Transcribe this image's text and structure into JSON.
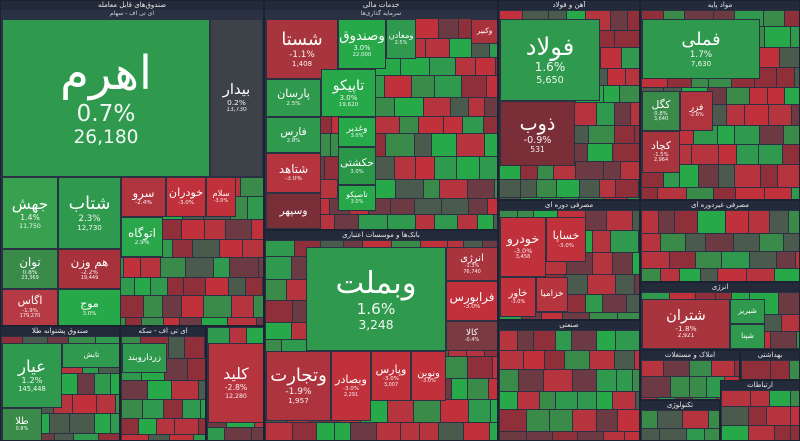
{
  "sectors": [
    {
      "title": "صندوق‌های قابل معامله",
      "subtitle": "ای تی اف - سهام",
      "tiles": [
        {
          "name": "اهرم",
          "change": "0.7%",
          "price": "26,180",
          "color": "#2f9a4e"
        },
        {
          "name": "بیدار",
          "change": "0.2%",
          "price": "13,730",
          "color": "#3d4148"
        },
        {
          "name": "جهش",
          "change": "1.4%",
          "price": "11,750",
          "color": "#38a14f"
        },
        {
          "name": "شتاب",
          "change": "2.3%",
          "price": "12,730",
          "color": "#2f9a4e"
        },
        {
          "name": "توان",
          "change": "0.8%",
          "price": "23,369",
          "color": "#3a8a4a"
        },
        {
          "name": "اگاس",
          "change": "-1.9%",
          "price": "179,270",
          "color": "#b53a44"
        },
        {
          "name": "هم وزن",
          "change": "-2.2%",
          "price": "19,449",
          "color": "#a8323c"
        },
        {
          "name": "موج",
          "change": "3.0%",
          "color": "#27a849"
        },
        {
          "name": "سرو",
          "change": "-2.4%",
          "color": "#b0343e"
        },
        {
          "name": "خودران",
          "change": "-3.0%",
          "color": "#c0313b"
        },
        {
          "name": "سلام",
          "change": "-3.0%",
          "color": "#c0313b"
        },
        {
          "name": "اتوگاه",
          "change": "2.9%",
          "color": "#2aa64b"
        }
      ]
    },
    {
      "title": "صندوق پشتوانه طلا",
      "tiles": [
        {
          "name": "عیار",
          "change": "1.2%",
          "price": "145,448",
          "color": "#2f9a4e"
        },
        {
          "name": "طلا",
          "change": "0.8%",
          "color": "#3a8a4a"
        },
        {
          "name": "تابش",
          "color": "#2f9a4e"
        }
      ]
    },
    {
      "title": "ای تی اف - سکه",
      "tiles": [
        {
          "name": "زرداروبند",
          "color": "#2f9a4e"
        }
      ]
    },
    {
      "tiles": [
        {
          "name": "کلید",
          "change": "-2.8%",
          "price": "12,280",
          "color": "#b5343e"
        }
      ]
    },
    {
      "title": "خدمات مالی",
      "subtitle": "سرمایه گذاری‌ها",
      "tiles": [
        {
          "name": "شستا",
          "change": "-1.1%",
          "price": "1,408",
          "color": "#a8343e"
        },
        {
          "name": "وصندوق",
          "change": "3.0%",
          "price": "22,000",
          "color": "#27a849"
        },
        {
          "name": "ومعادن",
          "change": "2.5%",
          "color": "#2f9a4e"
        },
        {
          "name": "وکبیر",
          "color": "#a8323c"
        },
        {
          "name": "پارسان",
          "change": "2.5%",
          "color": "#2f9a4e"
        },
        {
          "name": "تاپیکو",
          "change": "3.0%",
          "price": "19,620",
          "color": "#27a849"
        },
        {
          "name": "فارس",
          "change": "2.8%",
          "color": "#2f9a4e"
        },
        {
          "name": "وغدیر",
          "change": "3.0%",
          "color": "#27a849"
        },
        {
          "name": "شتاهد",
          "change": "-3.0%",
          "color": "#b5343e"
        },
        {
          "name": "حکشتی",
          "change": "3.0%",
          "color": "#2a9648"
        },
        {
          "name": "وسپهر",
          "color": "#7a2f38"
        },
        {
          "name": "تاصیکو",
          "change": "3.0%",
          "color": "#27a849"
        }
      ]
    },
    {
      "title": "بانک‌ها و موسسات اعتباری",
      "tiles": [
        {
          "name": "وبملت",
          "change": "1.6%",
          "price": "3,248",
          "color": "#2f9a4e"
        },
        {
          "name": "انرژی",
          "change": "-1.3%",
          "price": "76,740",
          "color": "#a8343e"
        },
        {
          "name": "فرابورس",
          "change": "-3.0%",
          "color": "#c0313b"
        },
        {
          "name": "کالا",
          "change": "-0.4%",
          "color": "#7a3a42"
        },
        {
          "name": "وتجارت",
          "change": "-1.9%",
          "price": "1,957",
          "color": "#ad343e"
        },
        {
          "name": "وبصادر",
          "change": "-3.0%",
          "price": "2,291",
          "color": "#c0313b"
        },
        {
          "name": "وپارس",
          "change": "-3.0%",
          "price": "3,007",
          "color": "#c0313b"
        },
        {
          "name": "ونوین",
          "change": "-3.0%",
          "color": "#c0313b"
        }
      ]
    },
    {
      "title": "آهن و فولاد",
      "tiles": [
        {
          "name": "فولاد",
          "change": "1.6%",
          "price": "5,650",
          "color": "#2f9a4e"
        },
        {
          "name": "ذوب",
          "change": "-0.9%",
          "price": "531",
          "color": "#7a2f38"
        }
      ]
    },
    {
      "title": "مواد پایه",
      "tiles": [
        {
          "name": "فملی",
          "change": "1.7%",
          "price": "7,630",
          "color": "#2f9a4e"
        },
        {
          "name": "کگل",
          "change": "0.8%",
          "price": "3,640",
          "color": "#3a8a4a"
        },
        {
          "name": "فزر",
          "change": "-2.6%",
          "color": "#b0343e"
        },
        {
          "name": "کچاد",
          "change": "-1.5%",
          "price": "2,964",
          "color": "#a8343e"
        }
      ]
    },
    {
      "title": "مصرفی دوره ای",
      "tiles": [
        {
          "name": "خودرو",
          "change": "-3.0%",
          "price": "3,458",
          "color": "#c0313b"
        },
        {
          "name": "خساپا",
          "change": "-3.0%",
          "color": "#c0313b"
        },
        {
          "name": "خاور",
          "change": "-3.0%",
          "color": "#c0313b"
        },
        {
          "name": "خزامیا",
          "color": "#b5343e"
        }
      ]
    },
    {
      "title": "مصرفی غیردوره ای",
      "tiles": []
    },
    {
      "title": "انرژی",
      "tiles": [
        {
          "name": "شتران",
          "change": "-1.8%",
          "price": "2,921",
          "color": "#a8343e"
        },
        {
          "name": "شبریز",
          "color": "#2f9a4e"
        },
        {
          "name": "شپنا",
          "color": "#2f9a4e"
        }
      ]
    },
    {
      "title": "صنعتی",
      "tiles": []
    },
    {
      "title": "املاک و مستغلات",
      "tiles": []
    },
    {
      "title": "بهداشتی",
      "tiles": []
    },
    {
      "title": "تکنولوژی",
      "tiles": []
    },
    {
      "title": "ارتباطات",
      "tiles": []
    }
  ]
}
